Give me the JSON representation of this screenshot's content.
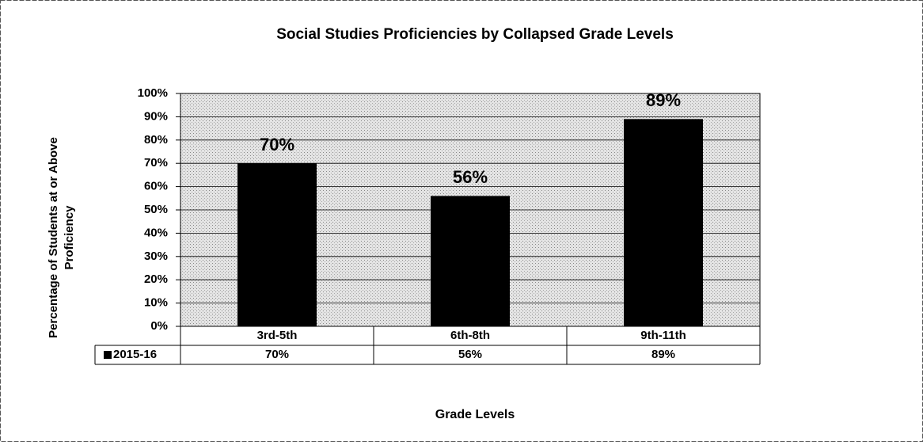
{
  "chart_data": {
    "type": "bar",
    "title": "Social Studies Proficiencies by Collapsed Grade Levels",
    "xlabel": "Grade Levels",
    "ylabel": [
      "Percentage of Students at or Above",
      "Proficiency"
    ],
    "categories": [
      "3rd-5th",
      "6th-8th",
      "9th-11th"
    ],
    "series": [
      {
        "name": "2015-16",
        "color": "#000000",
        "values": [
          70,
          56,
          89
        ],
        "value_labels": [
          "70%",
          "56%",
          "89%"
        ]
      }
    ],
    "ylim": [
      0,
      100
    ],
    "yticks": [
      {
        "value": 0,
        "label": "0%"
      },
      {
        "value": 10,
        "label": "10%"
      },
      {
        "value": 20,
        "label": "20%"
      },
      {
        "value": 30,
        "label": "30%"
      },
      {
        "value": 40,
        "label": "40%"
      },
      {
        "value": 50,
        "label": "50%"
      },
      {
        "value": 60,
        "label": "60%"
      },
      {
        "value": 70,
        "label": "70%"
      },
      {
        "value": 80,
        "label": "80%"
      },
      {
        "value": 90,
        "label": "90%"
      },
      {
        "value": 100,
        "label": "100%"
      }
    ],
    "grid": true,
    "data_table": true
  }
}
